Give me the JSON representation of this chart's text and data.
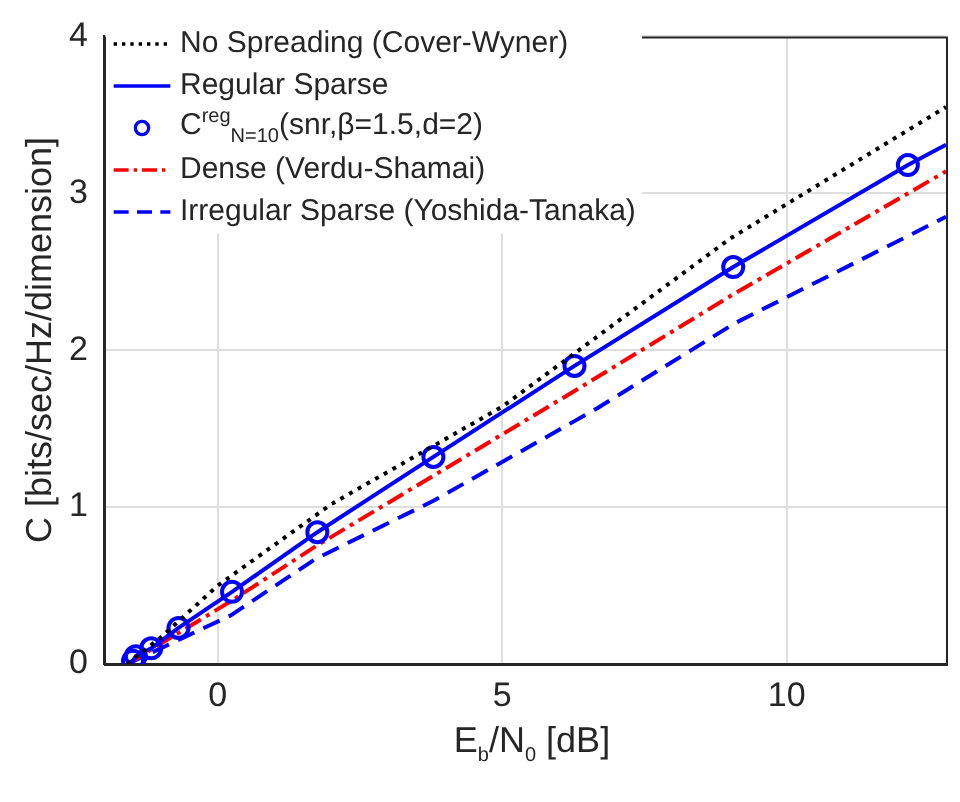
{
  "chart_data": {
    "type": "line",
    "xlabel": "E$_{b}$/N$_{0}$ [dB]",
    "ylabel": "C [bits/sec/Hz/dimension]",
    "xlim": [
      -2,
      12.8
    ],
    "xticks": [
      0,
      5,
      10
    ],
    "ylim": [
      0,
      4
    ],
    "yticks": [
      0,
      1,
      2,
      3,
      4
    ],
    "grid": true,
    "legend": "top left",
    "series": [
      {
        "name": "No Spreading (Cover-Wyner)",
        "color": "#000000",
        "line_style": "dotted",
        "marker": "none",
        "x": [
          -1.59,
          -1,
          0,
          2,
          5,
          9,
          12.8
        ],
        "values": [
          0,
          0.17,
          0.5,
          1.02,
          1.64,
          2.71,
          3.55
        ]
      },
      {
        "name": "Regular Sparse",
        "color": "#0000ff",
        "line_style": "solid",
        "marker": "none",
        "x": [
          -1.59,
          -1.49,
          -1.44,
          -1.17,
          -0.69,
          0.25,
          1.75,
          3.79,
          6.27,
          9.06,
          12.13,
          12.8
        ],
        "values": [
          0,
          0.02,
          0.05,
          0.1,
          0.23,
          0.46,
          0.84,
          1.32,
          1.9,
          2.53,
          3.18,
          3.31
        ]
      },
      {
        "name": "C$^{reg}$$_{N=10}$(snr,β=1.5,d=2)",
        "type": "scatter",
        "color": "#0000ff",
        "marker": "circle",
        "x": [
          -1.49,
          -1.44,
          -1.17,
          -0.69,
          0.25,
          1.75,
          3.79,
          6.27,
          9.06,
          12.13
        ],
        "values": [
          0.02,
          0.05,
          0.1,
          0.23,
          0.46,
          0.84,
          1.32,
          1.9,
          2.53,
          3.18
        ]
      },
      {
        "name": "Dense (Verdu-Shamai)",
        "color": "#ff0000",
        "line_style": "dashdot",
        "marker": "none",
        "x": [
          -1.59,
          0.23,
          1.72,
          3.79,
          6.27,
          9.08,
          12.8
        ],
        "values": [
          0,
          0.4,
          0.75,
          1.2,
          1.74,
          2.36,
          3.14
        ]
      },
      {
        "name": "Irregular Sparse (Yoshida-Tanaka)",
        "color": "#0000ff",
        "line_style": "dashed",
        "marker": "none",
        "x": [
          -1.59,
          0.23,
          1.72,
          3.79,
          6.67,
          9.08,
          12.8
        ],
        "values": [
          0,
          0.31,
          0.67,
          1.04,
          1.63,
          2.17,
          2.85
        ]
      }
    ]
  }
}
